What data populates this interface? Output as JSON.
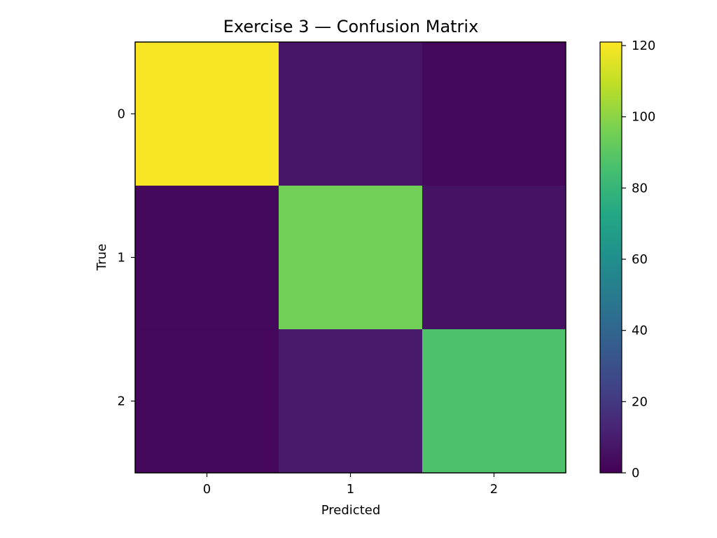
{
  "chart_data": {
    "type": "heatmap",
    "title": "Exercise 3 — Confusion Matrix",
    "xlabel": "Predicted",
    "ylabel": "True",
    "x_categories": [
      "0",
      "1",
      "2"
    ],
    "y_categories": [
      "0",
      "1",
      "2"
    ],
    "matrix": [
      [
        120,
        7,
        2
      ],
      [
        3,
        95,
        6
      ],
      [
        2,
        9,
        87
      ]
    ],
    "colormap": "viridis",
    "color_range": [
      0,
      121
    ],
    "colorbar_ticks": [
      0,
      20,
      40,
      60,
      80,
      100,
      120
    ],
    "colorbar_tick_labels": [
      "0",
      "20",
      "40",
      "60",
      "80",
      "100",
      "120"
    ],
    "grid": false
  }
}
